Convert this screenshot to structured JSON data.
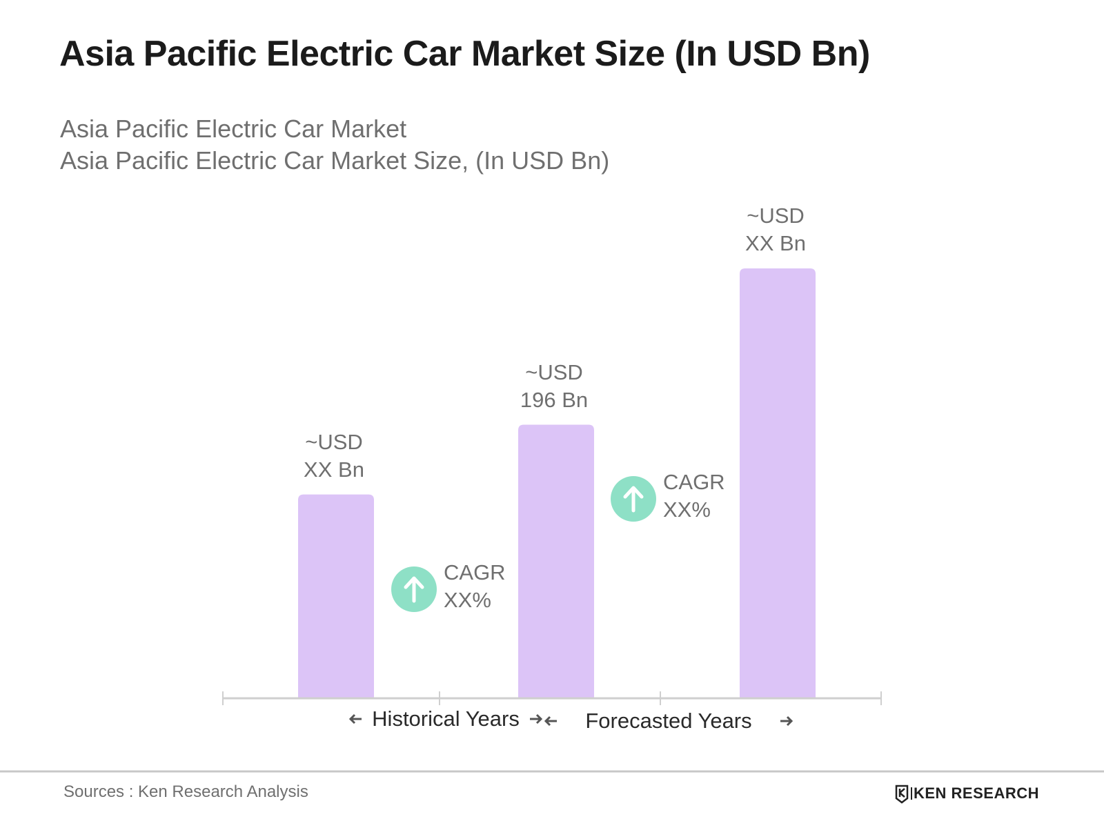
{
  "chart_data": {
    "type": "bar",
    "title": "Asia Pacific Electric Car Market Size (In USD Bn)",
    "subtitle": [
      "Asia Pacific Electric Car Market",
      "Asia Pacific Electric Car Market Size, (In USD Bn)"
    ],
    "categories": [
      null,
      null,
      null
    ],
    "values": [
      146,
      196,
      308
    ],
    "value_labels": [
      "~USD\nXX Bn",
      "~USD\n196 Bn",
      "~USD\nXX Bn"
    ],
    "color": "#dcc4f7",
    "annotations": [
      "CAGR\nXX%",
      "CAGR\nXX%"
    ],
    "annotation_color": "#8ee0c6",
    "period_labels": [
      "Historical Years",
      "Forecasted Years"
    ],
    "source": "Sources : Ken Research Analysis",
    "logo": "KEN RESEARCH"
  }
}
